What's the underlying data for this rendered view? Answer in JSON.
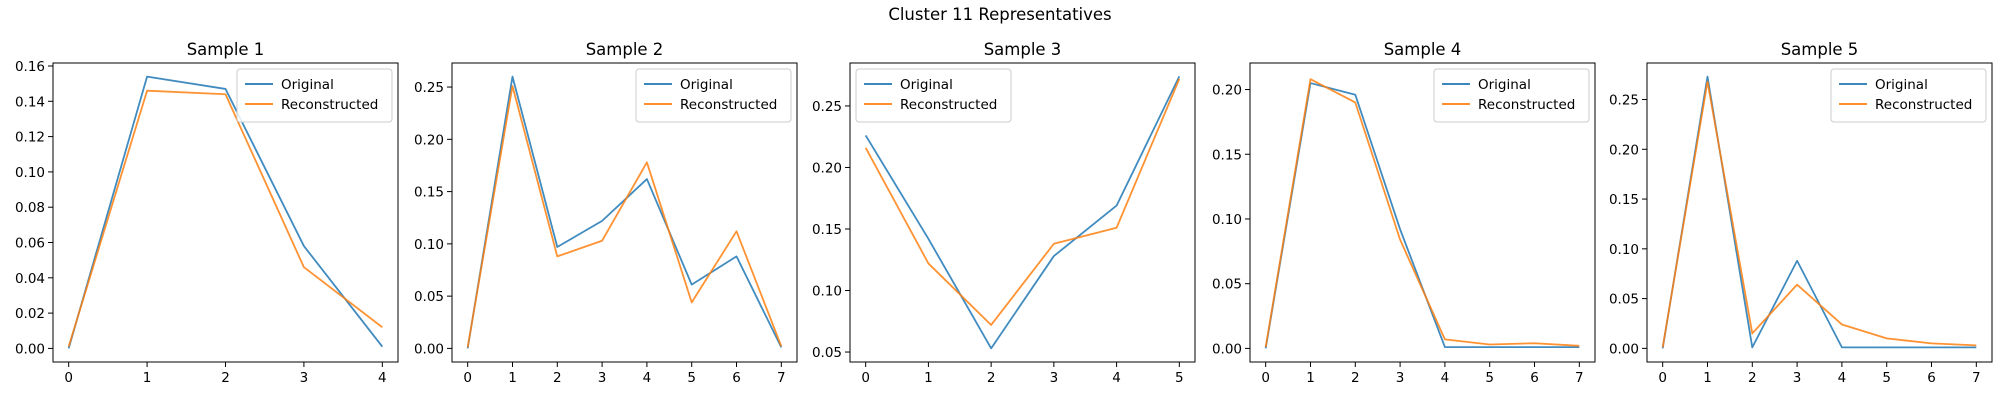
{
  "figure": {
    "title": "Cluster 11 Representatives"
  },
  "colors": {
    "original": "#1f77b4",
    "reconstructed": "#ff7f0e",
    "axes": "#000000",
    "legend_border": "#cccccc"
  },
  "chart_data": [
    {
      "type": "line",
      "title": "Sample 1",
      "xlabel": "",
      "ylabel": "",
      "x": [
        0,
        1,
        2,
        3,
        4
      ],
      "xlim": [
        -0.2,
        4.2
      ],
      "ylim": [
        -0.0077,
        0.1617
      ],
      "xticks": [
        0,
        1,
        2,
        3,
        4
      ],
      "yticks": [
        0.0,
        0.02,
        0.04,
        0.06,
        0.08,
        0.1,
        0.12,
        0.14,
        0.16
      ],
      "ytick_labels": [
        "0.00",
        "0.02",
        "0.04",
        "0.06",
        "0.08",
        "0.10",
        "0.12",
        "0.14",
        "0.16"
      ],
      "legend_loc": "upper right",
      "grid": false,
      "series": [
        {
          "name": "Original",
          "values": [
            0.0,
            0.154,
            0.147,
            0.058,
            0.001
          ]
        },
        {
          "name": "Reconstructed",
          "values": [
            0.001,
            0.146,
            0.144,
            0.046,
            0.012
          ]
        }
      ]
    },
    {
      "type": "line",
      "title": "Sample 2",
      "xlabel": "",
      "ylabel": "",
      "x": [
        0,
        1,
        2,
        3,
        4,
        5,
        6,
        7
      ],
      "xlim": [
        -0.35,
        7.35
      ],
      "ylim": [
        -0.013,
        0.273
      ],
      "xticks": [
        0,
        1,
        2,
        3,
        4,
        5,
        6,
        7
      ],
      "yticks": [
        0.0,
        0.05,
        0.1,
        0.15,
        0.2,
        0.25
      ],
      "ytick_labels": [
        "0.00",
        "0.05",
        "0.10",
        "0.15",
        "0.20",
        "0.25"
      ],
      "legend_loc": "upper right",
      "grid": false,
      "series": [
        {
          "name": "Original",
          "values": [
            0.0,
            0.26,
            0.097,
            0.122,
            0.162,
            0.061,
            0.088,
            0.001
          ]
        },
        {
          "name": "Reconstructed",
          "values": [
            0.001,
            0.251,
            0.088,
            0.103,
            0.178,
            0.044,
            0.112,
            0.002
          ]
        }
      ]
    },
    {
      "type": "line",
      "title": "Sample 3",
      "xlabel": "",
      "ylabel": "",
      "x": [
        0,
        1,
        2,
        3,
        4,
        5
      ],
      "xlim": [
        -0.25,
        5.25
      ],
      "ylim": [
        0.0419,
        0.2849
      ],
      "xticks": [
        0,
        1,
        2,
        3,
        4,
        5
      ],
      "yticks": [
        0.05,
        0.1,
        0.15,
        0.2,
        0.25
      ],
      "ytick_labels": [
        "0.05",
        "0.10",
        "0.15",
        "0.20",
        "0.25"
      ],
      "legend_loc": "upper left",
      "grid": false,
      "series": [
        {
          "name": "Original",
          "values": [
            0.226,
            0.142,
            0.053,
            0.128,
            0.169,
            0.274
          ]
        },
        {
          "name": "Reconstructed",
          "values": [
            0.216,
            0.122,
            0.072,
            0.138,
            0.151,
            0.272
          ]
        }
      ]
    },
    {
      "type": "line",
      "title": "Sample 4",
      "xlabel": "",
      "ylabel": "",
      "x": [
        0,
        1,
        2,
        3,
        4,
        5,
        6,
        7
      ],
      "xlim": [
        -0.35,
        7.35
      ],
      "ylim": [
        -0.0105,
        0.2205
      ],
      "xticks": [
        0,
        1,
        2,
        3,
        4,
        5,
        6,
        7
      ],
      "yticks": [
        0.0,
        0.05,
        0.1,
        0.15,
        0.2
      ],
      "ytick_labels": [
        "0.00",
        "0.05",
        "0.10",
        "0.15",
        "0.20"
      ],
      "legend_loc": "upper right",
      "grid": false,
      "series": [
        {
          "name": "Original",
          "values": [
            0.0,
            0.205,
            0.196,
            0.092,
            0.001,
            0.001,
            0.001,
            0.001
          ]
        },
        {
          "name": "Reconstructed",
          "values": [
            0.001,
            0.208,
            0.19,
            0.084,
            0.007,
            0.003,
            0.004,
            0.002
          ]
        }
      ]
    },
    {
      "type": "line",
      "title": "Sample 5",
      "xlabel": "",
      "ylabel": "",
      "x": [
        0,
        1,
        2,
        3,
        4,
        5,
        6,
        7
      ],
      "xlim": [
        -0.35,
        7.35
      ],
      "ylim": [
        -0.0137,
        0.2867
      ],
      "xticks": [
        0,
        1,
        2,
        3,
        4,
        5,
        6,
        7
      ],
      "yticks": [
        0.0,
        0.05,
        0.1,
        0.15,
        0.2,
        0.25
      ],
      "ytick_labels": [
        "0.00",
        "0.05",
        "0.10",
        "0.15",
        "0.20",
        "0.25"
      ],
      "legend_loc": "upper right",
      "grid": false,
      "series": [
        {
          "name": "Original",
          "values": [
            0.0,
            0.273,
            0.001,
            0.088,
            0.001,
            0.001,
            0.001,
            0.001
          ]
        },
        {
          "name": "Reconstructed",
          "values": [
            0.001,
            0.268,
            0.015,
            0.064,
            0.024,
            0.01,
            0.005,
            0.003
          ]
        }
      ]
    }
  ]
}
